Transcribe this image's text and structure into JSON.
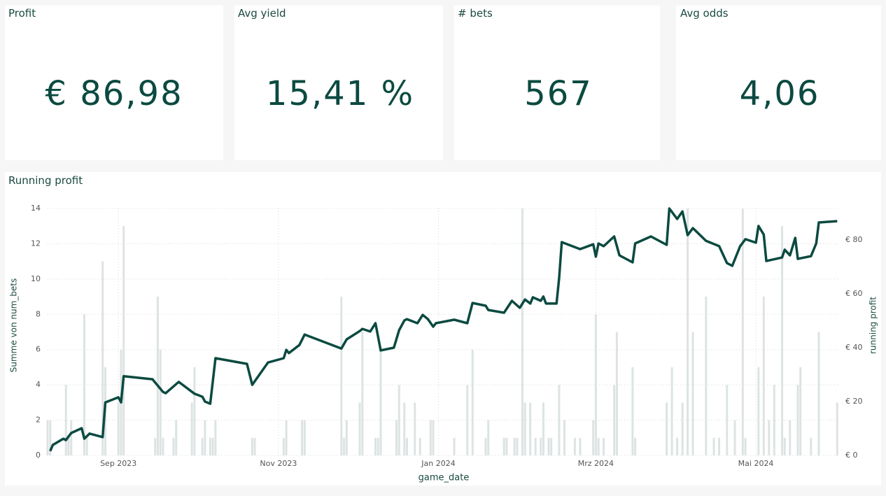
{
  "cards": [
    {
      "title": "Profit",
      "value": "€ 86,98"
    },
    {
      "title": "Avg yield",
      "value": "15,41 %"
    },
    {
      "title": "# bets",
      "value": "567"
    },
    {
      "title": "Avg odds",
      "value": "4,06"
    }
  ],
  "chart_data": {
    "type": "bar-line",
    "title": "Running profit",
    "xlabel": "game_date",
    "ylabel": "Summe von num_bets",
    "y2label": "running profit",
    "xlim": [
      "2023-08-05",
      "2024-06-02"
    ],
    "xticks": [
      {
        "value": "2023-09-01",
        "label": "Sep 2023"
      },
      {
        "value": "2023-11-01",
        "label": "Nov 2023"
      },
      {
        "value": "2024-01-01",
        "label": "Jan 2024"
      },
      {
        "value": "2024-03-01",
        "label": "Mrz 2024"
      },
      {
        "value": "2024-05-01",
        "label": "Mai 2024"
      }
    ],
    "ylim": [
      0,
      14
    ],
    "yticks": [
      0,
      2,
      4,
      6,
      8,
      10,
      12,
      14
    ],
    "y2lim": [
      0,
      91.7
    ],
    "y2ticks": [
      {
        "value": 0,
        "label": "€ 0"
      },
      {
        "value": 20,
        "label": "€ 20"
      },
      {
        "value": 40,
        "label": "€ 40"
      },
      {
        "value": 60,
        "label": "€ 60"
      },
      {
        "value": 80,
        "label": "€ 80"
      }
    ],
    "grid": true,
    "series": [
      {
        "type": "bar",
        "color": "#dde3e3",
        "x": [
          "2023-08-05",
          "2023-08-06",
          "2023-08-12",
          "2023-08-13",
          "2023-08-14",
          "2023-08-19",
          "2023-08-20",
          "2023-08-26",
          "2023-08-27",
          "2023-09-01",
          "2023-09-02",
          "2023-09-03",
          "2023-09-15",
          "2023-09-16",
          "2023-09-17",
          "2023-09-18",
          "2023-09-22",
          "2023-09-23",
          "2023-09-29",
          "2023-09-30",
          "2023-10-03",
          "2023-10-04",
          "2023-10-06",
          "2023-10-07",
          "2023-10-08",
          "2023-10-22",
          "2023-10-23",
          "2023-11-03",
          "2023-11-04",
          "2023-11-10",
          "2023-11-11",
          "2023-11-25",
          "2023-11-26",
          "2023-11-27",
          "2023-12-02",
          "2023-12-03",
          "2023-12-08",
          "2023-12-09",
          "2023-12-10",
          "2023-12-16",
          "2023-12-17",
          "2023-12-19",
          "2023-12-20",
          "2023-12-23",
          "2023-12-25",
          "2023-12-29",
          "2023-12-30",
          "2024-01-07",
          "2024-01-12",
          "2024-01-14",
          "2024-01-19",
          "2024-01-20",
          "2024-01-26",
          "2024-01-27",
          "2024-01-30",
          "2024-01-31",
          "2024-02-02",
          "2024-02-03",
          "2024-02-05",
          "2024-02-07",
          "2024-02-09",
          "2024-02-10",
          "2024-02-12",
          "2024-02-13",
          "2024-02-16",
          "2024-02-18",
          "2024-02-22",
          "2024-02-24",
          "2024-02-29",
          "2024-03-01",
          "2024-03-02",
          "2024-03-04",
          "2024-03-08",
          "2024-03-09",
          "2024-03-15",
          "2024-03-16",
          "2024-03-28",
          "2024-03-30",
          "2024-04-01",
          "2024-04-03",
          "2024-04-05",
          "2024-04-07",
          "2024-04-12",
          "2024-04-15",
          "2024-04-17",
          "2024-04-20",
          "2024-04-23",
          "2024-04-26",
          "2024-04-27",
          "2024-05-02",
          "2024-05-04",
          "2024-05-06",
          "2024-05-08",
          "2024-05-11",
          "2024-05-12",
          "2024-05-14",
          "2024-05-17",
          "2024-05-18",
          "2024-05-22",
          "2024-05-25",
          "2024-06-01"
        ],
        "values": [
          2,
          2,
          4,
          1,
          2,
          8,
          1,
          11,
          5,
          3,
          6,
          13,
          1,
          9,
          6,
          1,
          1,
          2,
          3,
          5,
          1,
          2,
          1,
          1,
          2,
          1,
          1,
          1,
          2,
          2,
          2,
          9,
          1,
          2,
          3,
          7,
          1,
          1,
          6,
          2,
          4,
          3,
          1,
          3,
          1,
          2,
          2,
          1,
          4,
          6,
          1,
          2,
          1,
          1,
          1,
          1,
          14,
          3,
          3,
          1,
          1,
          3,
          1,
          1,
          4,
          2,
          1,
          1,
          2,
          8,
          1,
          1,
          4,
          7,
          5,
          1,
          3,
          5,
          1,
          3,
          14,
          7,
          9,
          1,
          1,
          4,
          2,
          14,
          1,
          5,
          9,
          2,
          4,
          13,
          1,
          2,
          4,
          5,
          1,
          7,
          3
        ]
      },
      {
        "type": "line",
        "axis": "y2",
        "color": "#0b4a40",
        "x": [
          "2023-08-06",
          "2023-08-07",
          "2023-08-11",
          "2023-08-12",
          "2023-08-14",
          "2023-08-18",
          "2023-08-19",
          "2023-08-21",
          "2023-08-26",
          "2023-08-27",
          "2023-09-01",
          "2023-09-02",
          "2023-09-03",
          "2023-09-14",
          "2023-09-18",
          "2023-09-19",
          "2023-09-24",
          "2023-09-30",
          "2023-10-03",
          "2023-10-04",
          "2023-10-06",
          "2023-10-08",
          "2023-10-20",
          "2023-10-22",
          "2023-10-28",
          "2023-11-03",
          "2023-11-04",
          "2023-11-05",
          "2023-11-09",
          "2023-11-11",
          "2023-11-25",
          "2023-11-27",
          "2023-12-02",
          "2023-12-03",
          "2023-12-06",
          "2023-12-08",
          "2023-12-10",
          "2023-12-15",
          "2023-12-17",
          "2023-12-19",
          "2023-12-20",
          "2023-12-24",
          "2023-12-26",
          "2023-12-28",
          "2023-12-30",
          "2023-12-31",
          "2024-01-07",
          "2024-01-12",
          "2024-01-14",
          "2024-01-19",
          "2024-01-20",
          "2024-01-26",
          "2024-01-29",
          "2024-02-01",
          "2024-02-03",
          "2024-02-05",
          "2024-02-06",
          "2024-02-09",
          "2024-02-10",
          "2024-02-11",
          "2024-02-15",
          "2024-02-16",
          "2024-02-17",
          "2024-02-24",
          "2024-02-29",
          "2024-03-01",
          "2024-03-02",
          "2024-03-04",
          "2024-03-08",
          "2024-03-10",
          "2024-03-15",
          "2024-03-16",
          "2024-03-22",
          "2024-03-28",
          "2024-03-29",
          "2024-04-01",
          "2024-04-03",
          "2024-04-05",
          "2024-04-07",
          "2024-04-12",
          "2024-04-17",
          "2024-04-20",
          "2024-04-22",
          "2024-04-25",
          "2024-04-27",
          "2024-05-01",
          "2024-05-02",
          "2024-05-04",
          "2024-05-05",
          "2024-05-11",
          "2024-05-12",
          "2024-05-14",
          "2024-05-16",
          "2024-05-17",
          "2024-05-22",
          "2024-05-24",
          "2024-05-25",
          "2024-06-01"
        ],
        "values": [
          1.6,
          3.9,
          6.2,
          5.7,
          8.3,
          10.1,
          6.2,
          8.1,
          6.8,
          19.7,
          21.6,
          19.7,
          29.4,
          28.3,
          23.6,
          23.1,
          27.3,
          22.9,
          21.8,
          20,
          19.2,
          36.1,
          34,
          26.2,
          34.5,
          36.1,
          39.2,
          38,
          41,
          44.9,
          39.7,
          43.1,
          46.2,
          47,
          46,
          49.1,
          39,
          40,
          46.5,
          50.1,
          50.6,
          49.1,
          52.2,
          50.6,
          47.8,
          49.1,
          50.4,
          49.1,
          56.6,
          55.6,
          54,
          53,
          57.4,
          54.8,
          57.9,
          56.4,
          58.7,
          57.4,
          59,
          56.4,
          56.4,
          65.7,
          79.2,
          76.6,
          78.4,
          73.8,
          78.7,
          77.7,
          81.3,
          74.3,
          71.7,
          78.7,
          81.3,
          78.2,
          91.7,
          87.8,
          90.6,
          81.8,
          84.4,
          79.7,
          77.7,
          71.4,
          70.4,
          77.7,
          80.3,
          79,
          85.2,
          82,
          72.2,
          73.5,
          76.4,
          74.3,
          80.8,
          73,
          74,
          78.7,
          86.5,
          87
        ]
      }
    ]
  }
}
